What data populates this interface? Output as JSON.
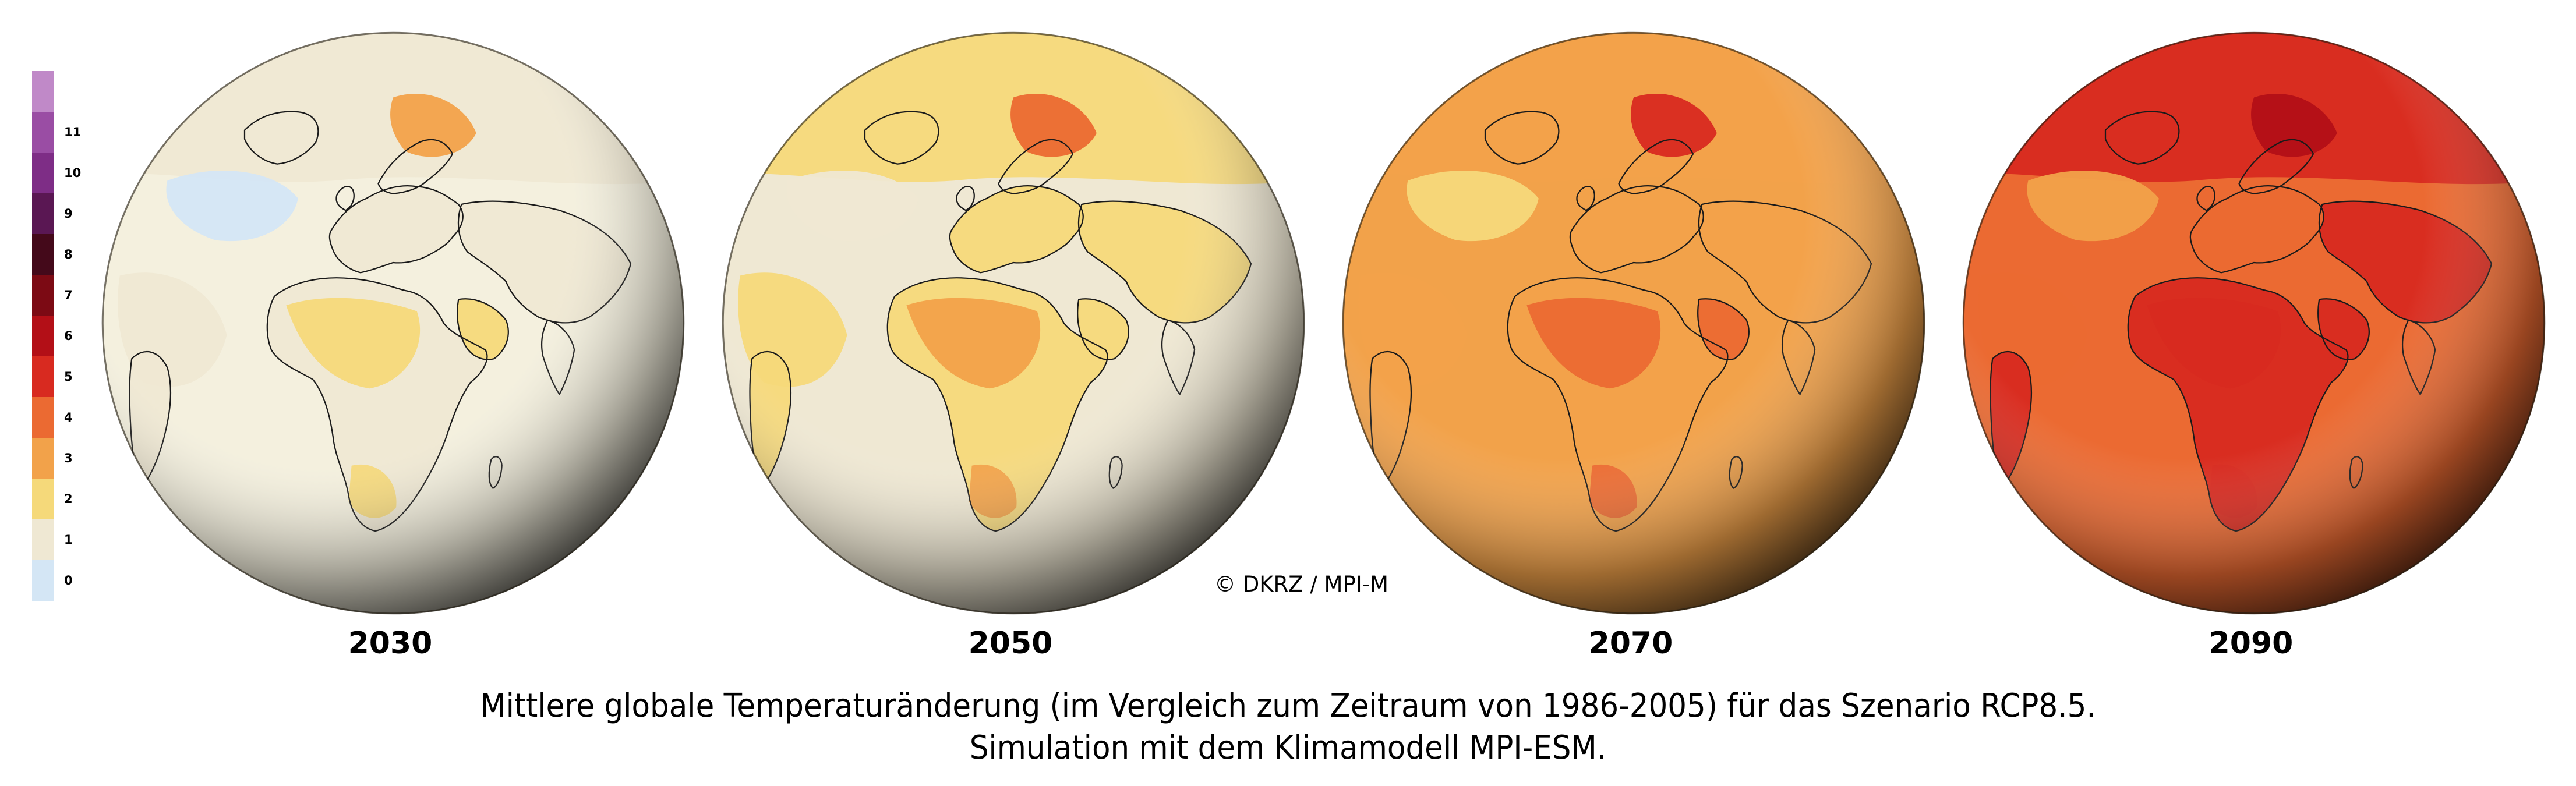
{
  "colors": {
    "legend": [
      "#d4e6f5",
      "#efe8d3",
      "#f5d97a",
      "#f2a24a",
      "#eb6a32",
      "#d82a20",
      "#b30f17",
      "#7c0a14",
      "#44091a",
      "#5a1753",
      "#7e2d86",
      "#9a4da4",
      "#c089c8"
    ],
    "globe_base": [
      "#f4f0de",
      "#d9d2b4",
      "#a59a77",
      "#3a3424"
    ],
    "coast": "#1a1a1a"
  },
  "legend": {
    "ticks": [
      "0",
      "1",
      "2",
      "3",
      "4",
      "5",
      "6",
      "7",
      "8",
      "9",
      "10",
      "11"
    ]
  },
  "globes": [
    {
      "year": "2030",
      "warm": 1.1
    },
    {
      "year": "2050",
      "warm": 1.9
    },
    {
      "year": "2070",
      "warm": 3.2
    },
    {
      "year": "2090",
      "warm": 4.6
    }
  ],
  "copyright": "© DKRZ / MPI-M",
  "caption": {
    "line1": "Mittlere globale Temperaturänderung (im Vergleich zum Zeitraum von 1986-2005) für das Szenario RCP8.5.",
    "line2": "Simulation mit dem Klimamodell MPI-ESM."
  }
}
